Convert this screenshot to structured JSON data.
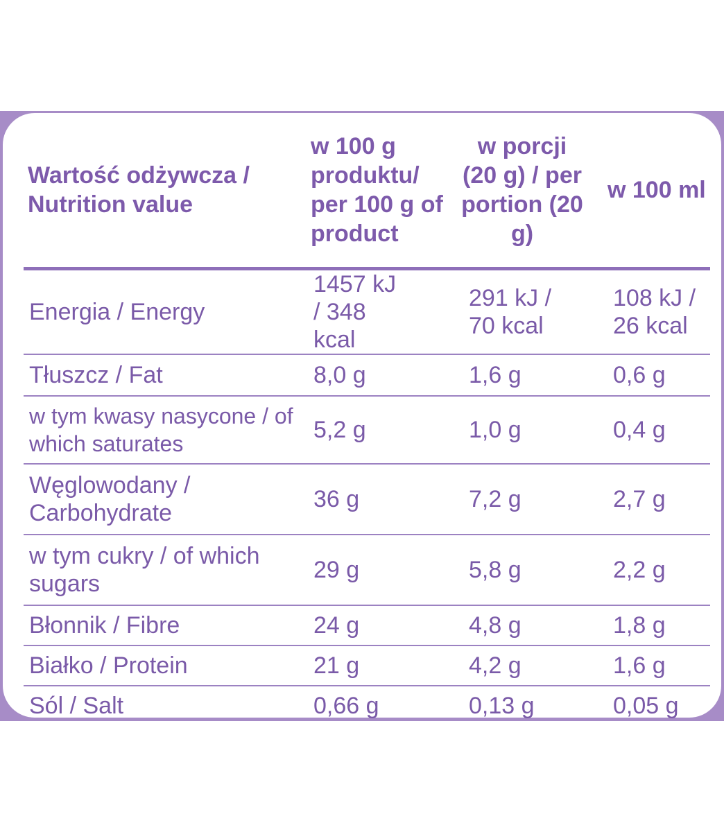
{
  "table": {
    "headers": [
      "Wartość odżywcza / Nutrition value",
      "w 100 g produktu/ per 100 g of product",
      "w porcji (20 g) / per portion (20 g)",
      "w 100 ml"
    ],
    "rows": [
      {
        "name": "Energia / Energy",
        "per100g": "1457 kJ / 348 kcal",
        "perPortion": "291 kJ / 70 kcal",
        "per100ml": "108 kJ / 26 kcal"
      },
      {
        "name": "Tłuszcz / Fat",
        "per100g": "8,0 g",
        "perPortion": "1,6 g",
        "per100ml": "0,6 g"
      },
      {
        "name": "w tym kwasy nasycone / of which saturates",
        "per100g": "5,2 g",
        "perPortion": "1,0 g",
        "per100ml": "0,4 g"
      },
      {
        "name": "Węglowodany / Carbohydrate",
        "per100g": "36 g",
        "perPortion": "7,2 g",
        "per100ml": "2,7 g"
      },
      {
        "name": "w tym cukry / of which sugars",
        "per100g": "29 g",
        "perPortion": "5,8 g",
        "per100ml": "2,2 g"
      },
      {
        "name": "Błonnik / Fibre",
        "per100g": "24 g",
        "perPortion": "4,8 g",
        "per100ml": "1,8 g"
      },
      {
        "name": "Białko / Protein",
        "per100g": "21 g",
        "perPortion": "4,2 g",
        "per100ml": "1,6 g"
      },
      {
        "name": "Sól / Salt",
        "per100g": "0,66 g",
        "perPortion": "0,13 g",
        "per100ml": "0,05 g"
      }
    ]
  },
  "colors": {
    "text": "#7a5aa8",
    "border": "#a78cc7"
  }
}
